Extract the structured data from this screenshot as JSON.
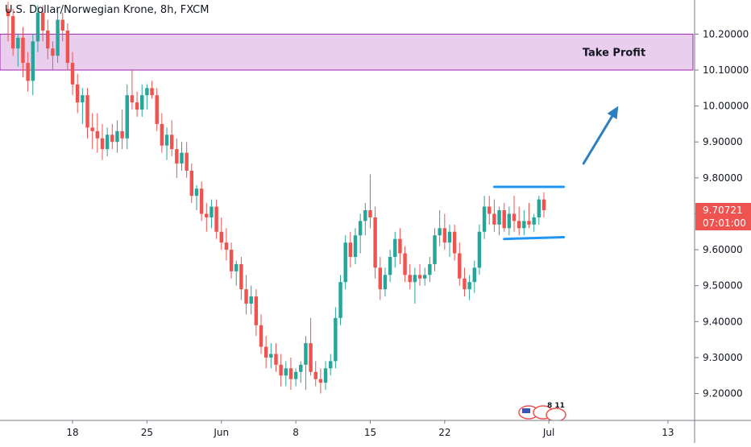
{
  "chart_data": {
    "type": "candlestick",
    "title": "U.S. Dollar/Norwegian Krone, 8h, FXCM",
    "xlabel": "",
    "ylabel": "",
    "ylim": [
      9.125,
      10.295
    ],
    "y_ticks": [
      9.2,
      9.3,
      9.4,
      9.5,
      9.6,
      9.7,
      9.8,
      9.9,
      10.0,
      10.1,
      10.2
    ],
    "y_tick_labels": [
      "9.20000",
      "9.30000",
      "9.40000",
      "9.50000",
      "9.60000",
      "9.70000",
      "9.80000",
      "9.90000",
      "10.00000",
      "10.10000",
      "10.20000"
    ],
    "x_tick_labels": [
      {
        "label": "18",
        "bar": 13
      },
      {
        "label": "25",
        "bar": 28
      },
      {
        "label": "Jun",
        "bar": 43
      },
      {
        "label": "8",
        "bar": 58
      },
      {
        "label": "15",
        "bar": 73
      },
      {
        "label": "22",
        "bar": 88
      },
      {
        "label": "Jul",
        "bar": 109
      },
      {
        "label": "13",
        "bar": 133
      }
    ],
    "bar_count_visible": 140,
    "grid": false,
    "legend": "none",
    "current_price_label": "9.70721",
    "countdown_label": "07:01:00",
    "bull_color": "#26a69a",
    "bear_color": "#ef5350",
    "ohlc": [
      [
        10.27,
        10.29,
        10.18,
        10.25
      ],
      [
        10.25,
        10.27,
        10.14,
        10.16
      ],
      [
        10.16,
        10.2,
        10.11,
        10.19
      ],
      [
        10.19,
        10.22,
        10.08,
        10.12
      ],
      [
        10.12,
        10.15,
        10.04,
        10.07
      ],
      [
        10.07,
        10.2,
        10.03,
        10.18
      ],
      [
        10.18,
        10.28,
        10.15,
        10.26
      ],
      [
        10.26,
        10.28,
        10.18,
        10.21
      ],
      [
        10.21,
        10.24,
        10.13,
        10.16
      ],
      [
        10.16,
        10.18,
        10.1,
        10.14
      ],
      [
        10.14,
        10.27,
        10.12,
        10.24
      ],
      [
        10.24,
        10.26,
        10.18,
        10.21
      ],
      [
        10.21,
        10.23,
        10.1,
        10.12
      ],
      [
        10.12,
        10.15,
        10.03,
        10.06
      ],
      [
        10.06,
        10.09,
        9.98,
        10.01
      ],
      [
        10.01,
        10.05,
        9.95,
        10.03
      ],
      [
        10.03,
        10.05,
        9.91,
        9.94
      ],
      [
        9.94,
        9.98,
        9.88,
        9.93
      ],
      [
        9.93,
        9.98,
        9.87,
        9.91
      ],
      [
        9.91,
        9.95,
        9.85,
        9.88
      ],
      [
        9.88,
        9.94,
        9.86,
        9.92
      ],
      [
        9.92,
        9.95,
        9.88,
        9.9
      ],
      [
        9.9,
        9.96,
        9.87,
        9.93
      ],
      [
        9.93,
        9.99,
        9.88,
        9.91
      ],
      [
        9.91,
        10.06,
        9.88,
        10.03
      ],
      [
        10.03,
        10.1,
        9.99,
        10.01
      ],
      [
        10.01,
        10.04,
        9.97,
        9.99
      ],
      [
        9.99,
        10.06,
        9.97,
        10.03
      ],
      [
        10.03,
        10.06,
        9.99,
        10.05
      ],
      [
        10.05,
        10.07,
        10.02,
        10.03
      ],
      [
        10.03,
        10.05,
        9.93,
        9.95
      ],
      [
        9.95,
        9.98,
        9.87,
        9.89
      ],
      [
        9.89,
        9.94,
        9.85,
        9.92
      ],
      [
        9.92,
        9.96,
        9.86,
        9.88
      ],
      [
        9.88,
        9.91,
        9.8,
        9.84
      ],
      [
        9.84,
        9.9,
        9.82,
        9.87
      ],
      [
        9.87,
        9.9,
        9.8,
        9.82
      ],
      [
        9.82,
        9.84,
        9.73,
        9.75
      ],
      [
        9.75,
        9.78,
        9.71,
        9.77
      ],
      [
        9.77,
        9.79,
        9.68,
        9.7
      ],
      [
        9.7,
        9.73,
        9.65,
        9.69
      ],
      [
        9.69,
        9.74,
        9.66,
        9.72
      ],
      [
        9.72,
        9.74,
        9.63,
        9.65
      ],
      [
        9.65,
        9.69,
        9.6,
        9.62
      ],
      [
        9.62,
        9.66,
        9.57,
        9.6
      ],
      [
        9.6,
        9.62,
        9.52,
        9.54
      ],
      [
        9.54,
        9.57,
        9.5,
        9.56
      ],
      [
        9.56,
        9.58,
        9.46,
        9.49
      ],
      [
        9.49,
        9.53,
        9.42,
        9.45
      ],
      [
        9.45,
        9.5,
        9.42,
        9.47
      ],
      [
        9.47,
        9.49,
        9.36,
        9.39
      ],
      [
        9.39,
        9.42,
        9.31,
        9.33
      ],
      [
        9.33,
        9.36,
        9.27,
        9.3
      ],
      [
        9.3,
        9.34,
        9.27,
        9.31
      ],
      [
        9.31,
        9.34,
        9.26,
        9.28
      ],
      [
        9.28,
        9.31,
        9.22,
        9.25
      ],
      [
        9.25,
        9.29,
        9.22,
        9.27
      ],
      [
        9.27,
        9.3,
        9.21,
        9.24
      ],
      [
        9.24,
        9.27,
        9.22,
        9.26
      ],
      [
        9.26,
        9.29,
        9.23,
        9.28
      ],
      [
        9.28,
        9.36,
        9.21,
        9.34
      ],
      [
        9.34,
        9.41,
        9.25,
        9.26
      ],
      [
        9.26,
        9.29,
        9.22,
        9.24
      ],
      [
        9.24,
        9.27,
        9.2,
        9.23
      ],
      [
        9.23,
        9.29,
        9.21,
        9.27
      ],
      [
        9.27,
        9.31,
        9.25,
        9.29
      ],
      [
        9.29,
        9.44,
        9.27,
        9.41
      ],
      [
        9.41,
        9.53,
        9.39,
        9.51
      ],
      [
        9.51,
        9.64,
        9.49,
        9.62
      ],
      [
        9.62,
        9.65,
        9.55,
        9.58
      ],
      [
        9.58,
        9.66,
        9.56,
        9.64
      ],
      [
        9.64,
        9.7,
        9.59,
        9.68
      ],
      [
        9.68,
        9.73,
        9.64,
        9.71
      ],
      [
        9.71,
        9.81,
        9.66,
        9.69
      ],
      [
        9.69,
        9.72,
        9.52,
        9.55
      ],
      [
        9.55,
        9.58,
        9.46,
        9.49
      ],
      [
        9.49,
        9.55,
        9.47,
        9.53
      ],
      [
        9.53,
        9.6,
        9.51,
        9.58
      ],
      [
        9.58,
        9.65,
        9.55,
        9.63
      ],
      [
        9.63,
        9.66,
        9.56,
        9.59
      ],
      [
        9.59,
        9.61,
        9.51,
        9.53
      ],
      [
        9.53,
        9.56,
        9.49,
        9.51
      ],
      [
        9.51,
        9.55,
        9.45,
        9.53
      ],
      [
        9.53,
        9.56,
        9.5,
        9.52
      ],
      [
        9.52,
        9.55,
        9.5,
        9.53
      ],
      [
        9.53,
        9.58,
        9.51,
        9.56
      ],
      [
        9.56,
        9.66,
        9.54,
        9.64
      ],
      [
        9.64,
        9.71,
        9.61,
        9.66
      ],
      [
        9.66,
        9.7,
        9.6,
        9.62
      ],
      [
        9.62,
        9.67,
        9.58,
        9.65
      ],
      [
        9.65,
        9.67,
        9.57,
        9.59
      ],
      [
        9.59,
        9.62,
        9.5,
        9.52
      ],
      [
        9.52,
        9.55,
        9.47,
        9.49
      ],
      [
        9.49,
        9.53,
        9.46,
        9.51
      ],
      [
        9.51,
        9.57,
        9.48,
        9.55
      ],
      [
        9.55,
        9.67,
        9.53,
        9.65
      ],
      [
        9.65,
        9.75,
        9.63,
        9.72
      ],
      [
        9.72,
        9.75,
        9.67,
        9.7
      ],
      [
        9.7,
        9.74,
        9.65,
        9.67
      ],
      [
        9.67,
        9.72,
        9.64,
        9.71
      ],
      [
        9.71,
        9.73,
        9.65,
        9.66
      ],
      [
        9.66,
        9.72,
        9.64,
        9.7
      ],
      [
        9.7,
        9.75,
        9.65,
        9.68
      ],
      [
        9.68,
        9.72,
        9.64,
        9.66
      ],
      [
        9.66,
        9.71,
        9.64,
        9.68
      ],
      [
        9.68,
        9.73,
        9.66,
        9.67
      ],
      [
        9.67,
        9.7,
        9.65,
        9.69
      ],
      [
        9.69,
        9.75,
        9.67,
        9.74
      ],
      [
        9.74,
        9.76,
        9.69,
        9.71
      ]
    ]
  },
  "annotations": {
    "take_profit_label": "Take Profit",
    "take_profit_zone": [
      10.1,
      10.2
    ],
    "channel_top": [
      {
        "bar": 98,
        "price": 9.775
      },
      {
        "bar": 112,
        "price": 9.775
      }
    ],
    "channel_bottom": [
      {
        "bar": 100,
        "price": 9.63
      },
      {
        "bar": 112,
        "price": 9.635
      }
    ],
    "arrow": [
      {
        "bar": 116,
        "price": 9.84
      },
      {
        "bar": 123,
        "price": 10.0
      }
    ],
    "zone_color": "#e1bee7",
    "zone_border": "#9c27b0",
    "line_color": "#2196f3",
    "arrow_color": "#2e7fbf"
  },
  "overlay": {
    "badge_text": "8 11",
    "badge_icon": "flag-icon"
  }
}
